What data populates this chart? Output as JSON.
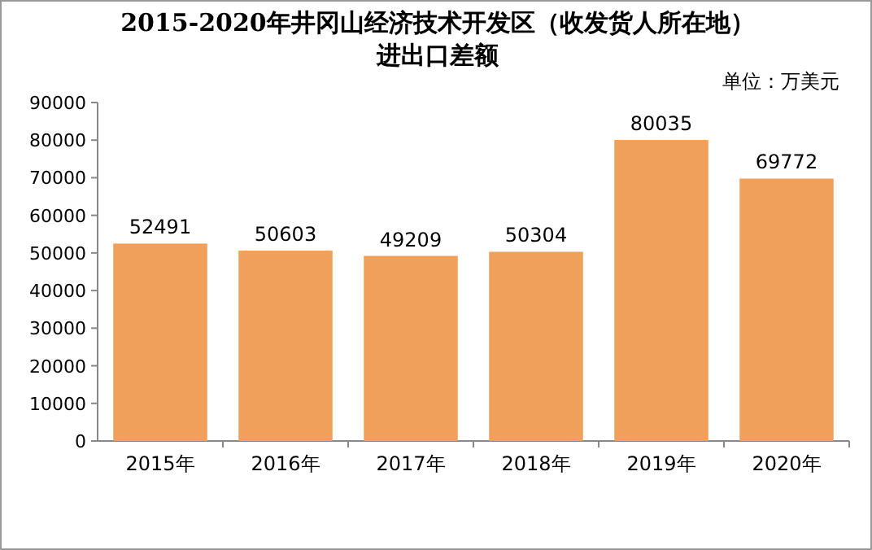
{
  "chart_data": {
    "type": "bar",
    "title": "2015-2020年井冈山经济技术开发区（收发货人所在地）进出口差额",
    "annotations": [
      "单位：万美元"
    ],
    "categories": [
      "2015年",
      "2016年",
      "2017年",
      "2018年",
      "2019年",
      "2020年"
    ],
    "values": [
      52491,
      50603,
      49209,
      50304,
      80035,
      69772
    ],
    "color": "#f0a05a",
    "ylim": [
      0,
      90000
    ],
    "yticks": [
      0,
      10000,
      20000,
      30000,
      40000,
      50000,
      60000,
      70000,
      80000,
      90000
    ],
    "data_labels": true
  }
}
